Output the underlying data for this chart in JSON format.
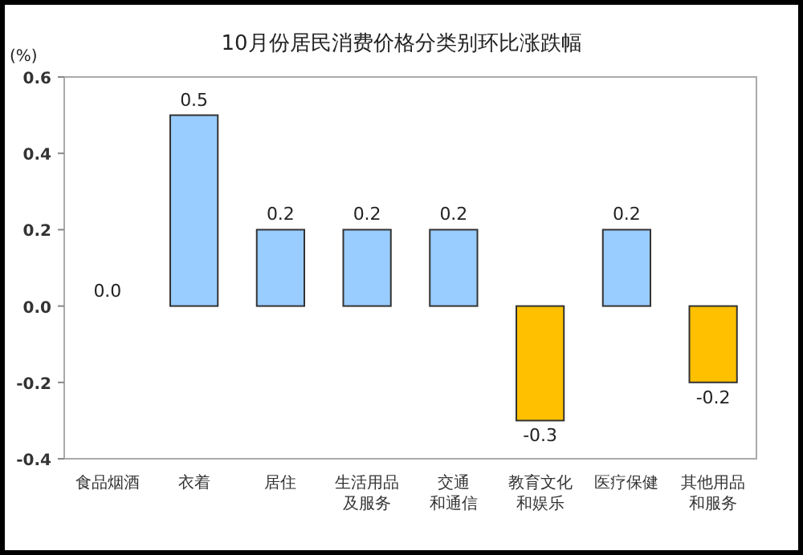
{
  "chart_data": {
    "type": "bar",
    "title": "10月份居民消费价格分类别环比涨跌幅",
    "ylabel": "(%)",
    "categories": [
      "食品烟酒",
      "衣着",
      "居住",
      "生活用品及服务",
      "交通和通信",
      "教育文化和娱乐",
      "医疗保健",
      "其他用品和服务"
    ],
    "values": [
      0.0,
      0.5,
      0.2,
      0.2,
      0.2,
      -0.3,
      0.2,
      -0.2
    ],
    "value_labels": [
      "0.0",
      "0.5",
      "0.2",
      "0.2",
      "0.2",
      "-0.3",
      "0.2",
      "-0.2"
    ],
    "colors": [
      "#99ccff",
      "#99ccff",
      "#99ccff",
      "#99ccff",
      "#99ccff",
      "#ffc000",
      "#99ccff",
      "#ffc000"
    ],
    "ylim": [
      -0.4,
      0.6
    ],
    "yticks": [
      {
        "value": -0.4,
        "label": "-0.4"
      },
      {
        "value": -0.2,
        "label": "-0.2"
      },
      {
        "value": 0,
        "label": "0.0"
      },
      {
        "value": 0.2,
        "label": "0.2"
      },
      {
        "value": 0.4,
        "label": "0.4"
      },
      {
        "value": 0.6,
        "label": "0.6"
      }
    ],
    "grid": false
  }
}
